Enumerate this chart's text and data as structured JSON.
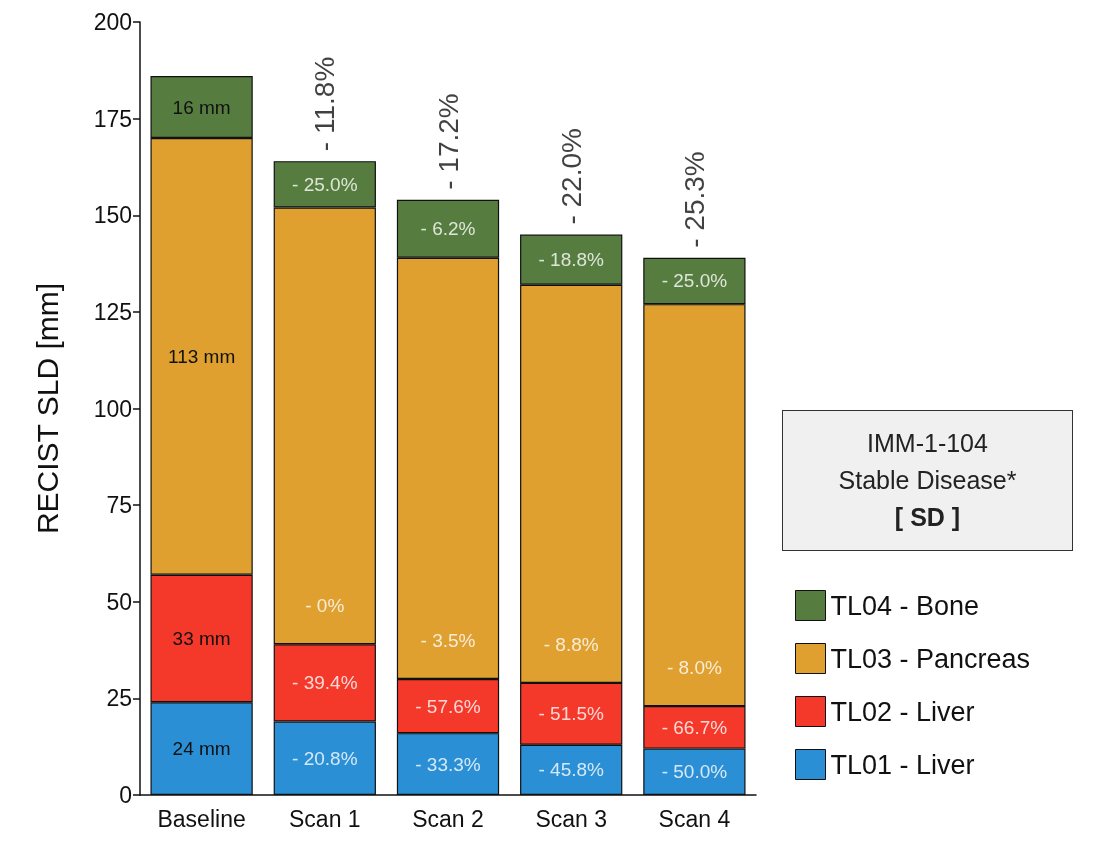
{
  "chart_data": {
    "type": "bar",
    "stacked": true,
    "ylabel": "RECIST SLD [mm]",
    "categories": [
      "Baseline",
      "Scan 1",
      "Scan 2",
      "Scan 3",
      "Scan 4"
    ],
    "series": [
      {
        "name": "TL01 - Liver",
        "color": "#2b8fd6",
        "values": [
          24,
          19,
          16,
          13,
          12
        ],
        "value_labels": [
          "24 mm",
          null,
          null,
          null,
          null
        ]
      },
      {
        "name": "TL02 - Liver",
        "color": "#f4382a",
        "values": [
          33,
          20,
          14,
          16,
          11
        ],
        "value_labels": [
          "33 mm",
          null,
          null,
          null,
          null
        ]
      },
      {
        "name": "TL03 - Pancreas",
        "color": "#dfa030",
        "values": [
          113,
          113,
          109,
          103,
          104
        ],
        "value_labels": [
          "113 mm",
          null,
          null,
          null,
          null
        ]
      },
      {
        "name": "TL04 - Bone",
        "color": "#567d3f",
        "values": [
          16,
          12,
          15,
          13,
          12
        ],
        "value_labels": [
          "16 mm",
          null,
          null,
          null,
          null
        ]
      }
    ],
    "ylim": [
      0,
      200
    ],
    "yticks": [
      0,
      25,
      50,
      75,
      100,
      125,
      150,
      175,
      200
    ],
    "grid": false,
    "legend": "right",
    "annotations": [
      {
        "text": "- 11.8%",
        "x": "Scan 1",
        "y": 164
      },
      {
        "text": "- 17.2%",
        "x": "Scan 2",
        "y": 154
      },
      {
        "text": "- 22.0%",
        "x": "Scan 3",
        "y": 145
      },
      {
        "text": "- 25.3%",
        "x": "Scan 4",
        "y": 139
      },
      {
        "text": "- 20.8%",
        "x": "Scan 1",
        "y": 0
      },
      {
        "text": "- 39.4%",
        "x": "Scan 1",
        "y": 19
      },
      {
        "text": "- 0%",
        "x": "Scan 1",
        "y": 39
      },
      {
        "text": "- 25.0%",
        "x": "Scan 1",
        "y": 152
      },
      {
        "text": "- 33.3%",
        "x": "Scan 2",
        "y": 0
      },
      {
        "text": "- 57.6%",
        "x": "Scan 2",
        "y": 16
      },
      {
        "text": "- 3.5%",
        "x": "Scan 2",
        "y": 30
      },
      {
        "text": "- 6.2%",
        "x": "Scan 2",
        "y": 139
      },
      {
        "text": "- 45.8%",
        "x": "Scan 3",
        "y": 0
      },
      {
        "text": "- 51.5%",
        "x": "Scan 3",
        "y": 13
      },
      {
        "text": "- 8.8%",
        "x": "Scan 3",
        "y": 29
      },
      {
        "text": "- 18.8%",
        "x": "Scan 3",
        "y": 132
      },
      {
        "text": "- 50.0%",
        "x": "Scan 4",
        "y": 0
      },
      {
        "text": "- 66.7%",
        "x": "Scan 4",
        "y": 12
      },
      {
        "text": "- 8.0%",
        "x": "Scan 4",
        "y": 23
      },
      {
        "text": "- 25.0%",
        "x": "Scan 4",
        "y": 127
      },
      "IMM-1-104",
      "Stable Disease*",
      "[ SD ]"
    ]
  }
}
